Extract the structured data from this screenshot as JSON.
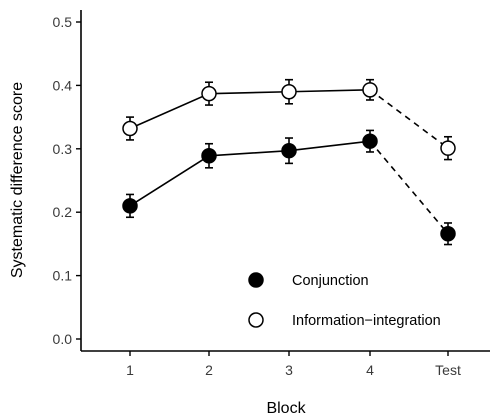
{
  "chart_data": {
    "type": "line",
    "title": "",
    "xlabel": "Block",
    "ylabel": "Systematic difference score",
    "categories": [
      "1",
      "2",
      "3",
      "4",
      "Test"
    ],
    "ylim": [
      -0.02,
      0.52
    ],
    "yticks": [
      "0.0",
      "0.1",
      "0.2",
      "0.3",
      "0.4",
      "0.5"
    ],
    "yticks_values": [
      0.0,
      0.1,
      0.2,
      0.3,
      0.4,
      0.5
    ],
    "grid": false,
    "legend_position": "bottom-right",
    "series": [
      {
        "name": "Conjunction",
        "marker": "filled-circle",
        "color": "#000000",
        "values": [
          0.21,
          0.289,
          0.297,
          0.312,
          0.166
        ],
        "error": [
          0.018,
          0.019,
          0.02,
          0.017,
          0.017
        ],
        "solid_segment_end": 3,
        "dashed_to_test": true
      },
      {
        "name": "Information−integration",
        "marker": "open-circle",
        "color": "#000000",
        "values": [
          0.332,
          0.387,
          0.39,
          0.393,
          0.301
        ],
        "error": [
          0.018,
          0.018,
          0.019,
          0.016,
          0.018
        ],
        "solid_segment_end": 3,
        "dashed_to_test": true
      }
    ]
  }
}
